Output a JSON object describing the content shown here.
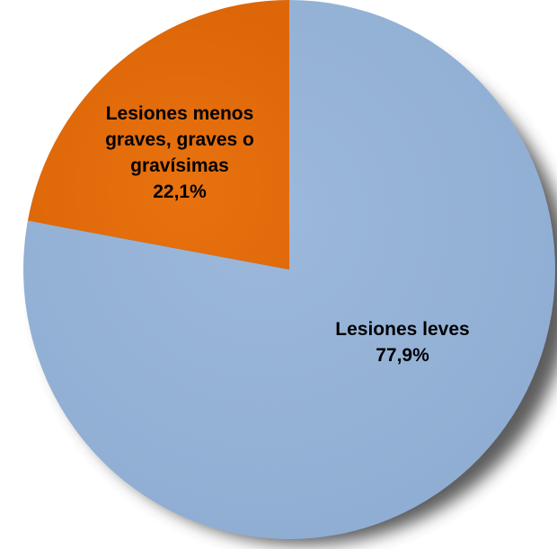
{
  "chart_data": {
    "type": "pie",
    "title": "",
    "slices": [
      {
        "label_lines": [
          "Lesiones leves"
        ],
        "value_text": "77,9%",
        "value": 77.9,
        "color": "#95b3d7"
      },
      {
        "label_lines": [
          "Lesiones menos",
          "graves, graves o",
          "gravísimas"
        ],
        "value_text": "22,1%",
        "value": 22.1,
        "color": "#e36c0a"
      }
    ],
    "shadow": true
  }
}
